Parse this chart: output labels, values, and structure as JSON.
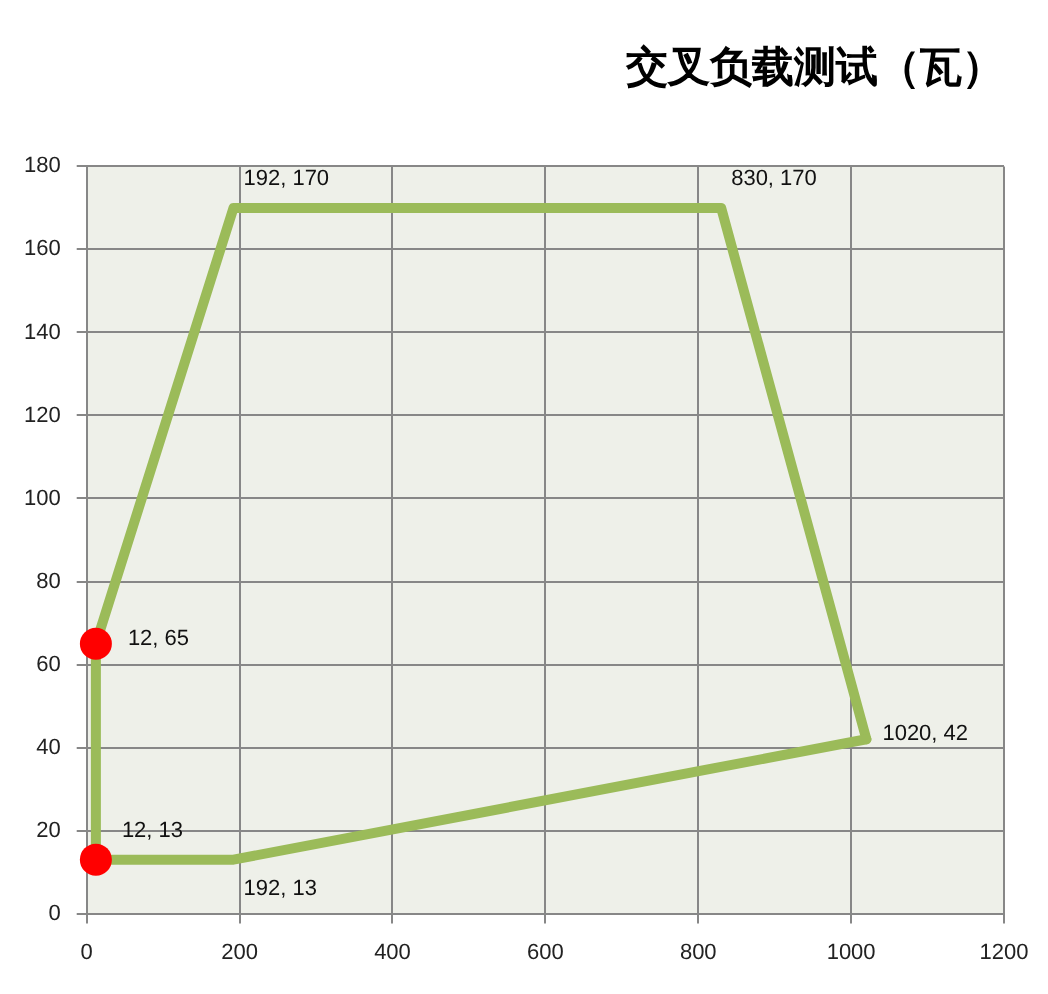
{
  "chart_data": {
    "type": "line",
    "title": "交叉负载测试（瓦）",
    "xlim": [
      0,
      1200
    ],
    "xticks": [
      0,
      200,
      400,
      600,
      800,
      1000,
      1200
    ],
    "ylim": [
      0,
      180
    ],
    "yticks": [
      0,
      20,
      40,
      60,
      80,
      100,
      120,
      140,
      160,
      180
    ],
    "grid": true,
    "legend": false,
    "series": [
      {
        "type": "line",
        "color": "#9bbb59",
        "marker": "none",
        "line_style": "solid",
        "x": [
          12,
          192,
          830,
          1020
        ],
        "values": [
          65,
          170,
          170,
          42
        ],
        "value_labels": [
          null,
          "192, 170",
          "830, 170",
          "1020, 42"
        ]
      },
      {
        "type": "line",
        "color": "#9bbb59",
        "marker": "none",
        "line_style": "solid",
        "x": [
          12,
          12,
          192,
          1020
        ],
        "values": [
          65,
          13,
          13,
          42
        ],
        "value_labels": [
          null,
          null,
          "192, 13",
          null
        ]
      },
      {
        "type": "scatter",
        "color": "#ff0000",
        "marker": "circle",
        "x": [
          12,
          12
        ],
        "values": [
          65,
          13
        ],
        "value_labels": [
          "12, 65",
          "12, 13"
        ]
      }
    ]
  }
}
